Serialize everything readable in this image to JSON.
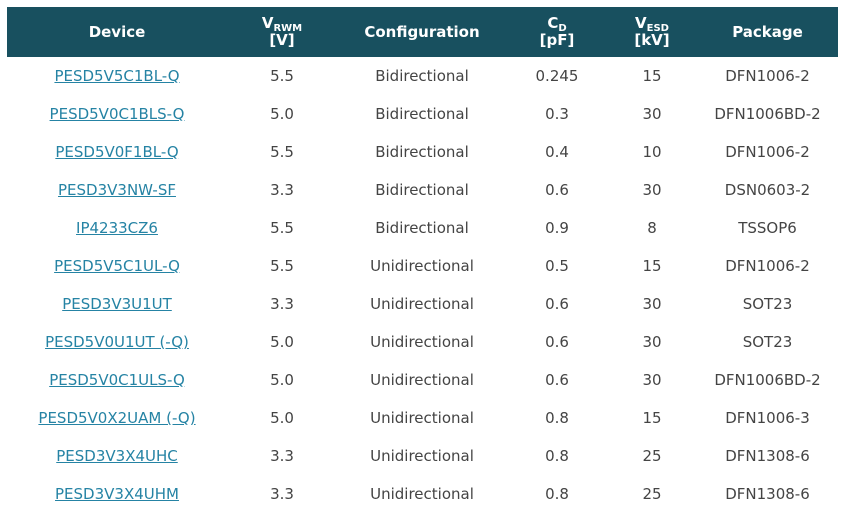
{
  "theme": {
    "header_bg": "#18505f",
    "header_text": "#ffffff",
    "link_color": "#2583a4",
    "body_text": "#444444",
    "page_bg": "#ffffff"
  },
  "table": {
    "columns": [
      {
        "label": "Device"
      },
      {
        "symbol": "V",
        "subscript": "RWM",
        "unit": "[V]"
      },
      {
        "label": "Configuration"
      },
      {
        "symbol": "C",
        "subscript": "D",
        "unit": "[pF]"
      },
      {
        "symbol": "V",
        "subscript": "ESD",
        "unit": "[kV]"
      },
      {
        "label": "Package"
      }
    ],
    "rows": [
      {
        "device": "PESD5V5C1BL-Q",
        "vrwm": "5.5",
        "configuration": "Bidirectional",
        "cd": "0.245",
        "vesd": "15",
        "package": "DFN1006-2"
      },
      {
        "device": "PESD5V0C1BLS-Q",
        "vrwm": "5.0",
        "configuration": "Bidirectional",
        "cd": "0.3",
        "vesd": "30",
        "package": "DFN1006BD-2"
      },
      {
        "device": "PESD5V0F1BL-Q",
        "vrwm": "5.5",
        "configuration": "Bidirectional",
        "cd": "0.4",
        "vesd": "10",
        "package": "DFN1006-2"
      },
      {
        "device": "PESD3V3NW-SF",
        "vrwm": "3.3",
        "configuration": "Bidirectional",
        "cd": "0.6",
        "vesd": "30",
        "package": "DSN0603-2"
      },
      {
        "device": "IP4233CZ6",
        "vrwm": "5.5",
        "configuration": "Bidirectional",
        "cd": "0.9",
        "vesd": "8",
        "package": "TSSOP6"
      },
      {
        "device": "PESD5V5C1UL-Q",
        "vrwm": "5.5",
        "configuration": "Unidirectional",
        "cd": "0.5",
        "vesd": "15",
        "package": "DFN1006-2"
      },
      {
        "device": "PESD3V3U1UT",
        "vrwm": "3.3",
        "configuration": "Unidirectional",
        "cd": "0.6",
        "vesd": "30",
        "package": "SOT23"
      },
      {
        "device": "PESD5V0U1UT (-Q)",
        "vrwm": "5.0",
        "configuration": "Unidirectional",
        "cd": "0.6",
        "vesd": "30",
        "package": "SOT23"
      },
      {
        "device": "PESD5V0C1ULS-Q",
        "vrwm": "5.0",
        "configuration": "Unidirectional",
        "cd": "0.6",
        "vesd": "30",
        "package": "DFN1006BD-2"
      },
      {
        "device": "PESD5V0X2UAM (-Q)",
        "vrwm": "5.0",
        "configuration": "Unidirectional",
        "cd": "0.8",
        "vesd": "15",
        "package": "DFN1006-3"
      },
      {
        "device": "PESD3V3X4UHC",
        "vrwm": "3.3",
        "configuration": "Unidirectional",
        "cd": "0.8",
        "vesd": "25",
        "package": "DFN1308-6"
      },
      {
        "device": "PESD3V3X4UHM",
        "vrwm": "3.3",
        "configuration": "Unidirectional",
        "cd": "0.8",
        "vesd": "25",
        "package": "DFN1308-6"
      }
    ]
  }
}
